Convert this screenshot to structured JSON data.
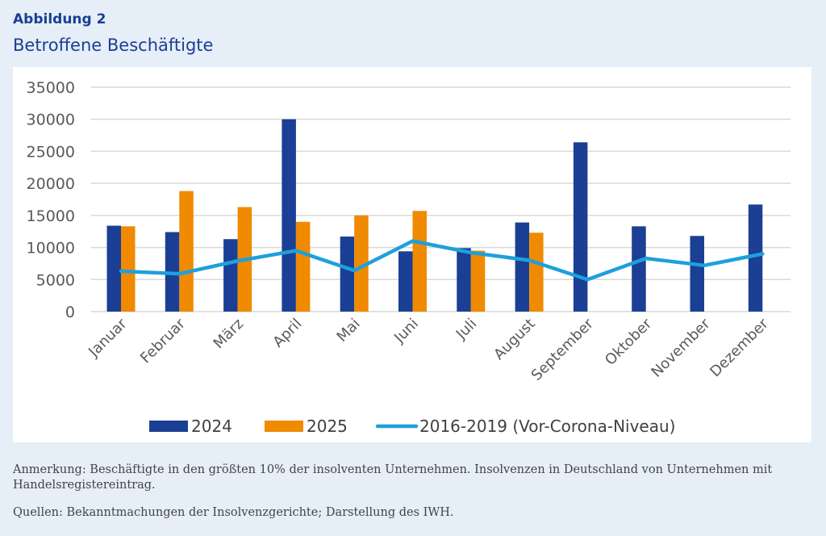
{
  "header": {
    "figure_label": "Abbildung 2",
    "title": "Betroffene Beschäftigte"
  },
  "chart_data": {
    "type": "bar",
    "title": "Betroffene Beschäftigte",
    "categories": [
      "Januar",
      "Februar",
      "März",
      "April",
      "Mai",
      "Juni",
      "Juli",
      "August",
      "September",
      "Oktober",
      "November",
      "Dezember"
    ],
    "series": [
      {
        "name": "2024",
        "type": "bar",
        "color": "#1a3f94",
        "values": [
          13400,
          12400,
          11300,
          30000,
          11700,
          9400,
          9900,
          13900,
          26400,
          13300,
          11800,
          16700
        ]
      },
      {
        "name": "2025",
        "type": "bar",
        "color": "#f08a00",
        "values": [
          13300,
          18800,
          16300,
          14000,
          15000,
          15700,
          9500,
          12300,
          null,
          null,
          null,
          null
        ]
      },
      {
        "name": "2016-2019 (Vor-Corona-Niveau)",
        "type": "line",
        "color": "#1ea0dc",
        "values": [
          6300,
          5900,
          7900,
          9500,
          6400,
          11000,
          9200,
          8000,
          5000,
          8300,
          7200,
          9000
        ]
      }
    ],
    "yticks": [
      "0",
      "5000",
      "10000",
      "15000",
      "20000",
      "25000",
      "30000",
      "35000"
    ],
    "ylim": [
      0,
      35000
    ],
    "grid": true,
    "legend": "bottom"
  },
  "footer": {
    "note": "Anmerkung: Beschäftigte in den größten 10% der insolventen Unternehmen. Insolvenzen in Deutschland von Unternehmen mit Handelsregistereintrag.",
    "source": "Quellen: Bekanntmachungen der Insolvenzgerichte; Darstellung des IWH."
  }
}
